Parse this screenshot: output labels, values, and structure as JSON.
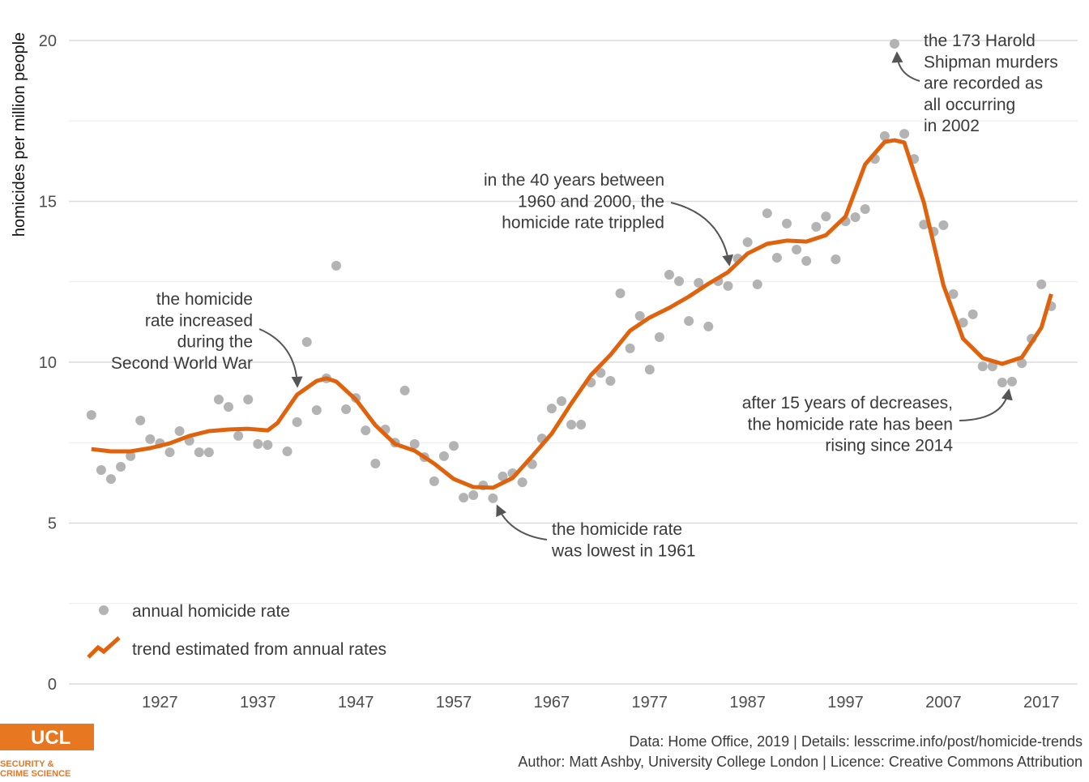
{
  "chart_data": {
    "type": "scatter",
    "y_label": "homicides per million people",
    "xlim": [
      1917.7,
      2020.7
    ],
    "ylim": [
      -0.5,
      21
    ],
    "xticks": [
      1927,
      1937,
      1947,
      1957,
      1967,
      1977,
      1987,
      1997,
      2007,
      2017
    ],
    "yticks": [
      0,
      5,
      10,
      15,
      20
    ],
    "grid": true,
    "series": [
      {
        "name": "annual homicide rate",
        "type": "scatter",
        "color": "#b3b3b3",
        "x": [
          1920,
          1921,
          1922,
          1923,
          1924,
          1925,
          1926,
          1927,
          1928,
          1929,
          1930,
          1931,
          1932,
          1933,
          1934,
          1935,
          1936,
          1937,
          1938,
          1940,
          1941,
          1942,
          1943,
          1944,
          1945,
          1946,
          1947,
          1948,
          1949,
          1950,
          1951,
          1952,
          1953,
          1954,
          1955,
          1956,
          1957,
          1958,
          1959,
          1960,
          1961,
          1962,
          1963,
          1964,
          1965,
          1966,
          1967,
          1968,
          1969,
          1970,
          1971,
          1972,
          1973,
          1974,
          1975,
          1976,
          1977,
          1978,
          1979,
          1980,
          1981,
          1982,
          1983,
          1984,
          1985,
          1986,
          1987,
          1988,
          1989,
          1990,
          1991,
          1992,
          1993,
          1994,
          1995,
          1996,
          1997,
          1998,
          1999,
          2000,
          2001,
          2002,
          2003,
          2004,
          2005,
          2006,
          2007,
          2008,
          2009,
          2010,
          2011,
          2012,
          2013,
          2014,
          2015,
          2016,
          2017,
          2018
        ],
        "values": [
          8.36,
          6.65,
          6.37,
          6.75,
          7.08,
          8.19,
          7.61,
          7.48,
          7.2,
          7.86,
          7.56,
          7.2,
          7.2,
          8.84,
          8.61,
          7.71,
          8.84,
          7.46,
          7.43,
          7.23,
          8.14,
          10.63,
          8.51,
          9.5,
          13.0,
          8.54,
          8.89,
          7.88,
          6.85,
          7.91,
          7.5,
          9.12,
          7.46,
          7.05,
          6.3,
          7.08,
          7.4,
          5.79,
          5.87,
          6.17,
          5.77,
          6.45,
          6.55,
          6.27,
          6.83,
          7.63,
          8.56,
          8.79,
          8.06,
          8.06,
          9.37,
          9.67,
          9.42,
          12.14,
          10.43,
          11.44,
          9.77,
          10.78,
          12.72,
          12.52,
          11.28,
          12.47,
          11.11,
          12.52,
          12.37,
          13.22,
          13.73,
          12.42,
          14.63,
          13.25,
          14.31,
          13.5,
          13.15,
          14.21,
          14.53,
          13.2,
          14.38,
          14.51,
          14.76,
          16.32,
          17.03,
          19.9,
          17.1,
          16.32,
          14.28,
          14.06,
          14.26,
          12.12,
          11.23,
          11.49,
          9.87,
          9.87,
          9.37,
          9.4,
          9.97,
          10.73,
          12.42,
          11.74
        ]
      },
      {
        "name": "trend estimated from annual rates",
        "type": "line",
        "color": "#e0620d",
        "x": [
          1920,
          1922,
          1924,
          1926,
          1928,
          1930,
          1932,
          1934,
          1936,
          1938,
          1939,
          1941,
          1943,
          1944,
          1945,
          1947,
          1949,
          1951,
          1953,
          1955,
          1957,
          1959,
          1961,
          1963,
          1965,
          1967,
          1969,
          1971,
          1973,
          1975,
          1977,
          1979,
          1981,
          1983,
          1985,
          1987,
          1989,
          1991,
          1993,
          1995,
          1997,
          1999,
          2001,
          2002,
          2003,
          2005,
          2007,
          2009,
          2011,
          2013,
          2015,
          2017,
          2018
        ],
        "values": [
          7.3,
          7.23,
          7.23,
          7.33,
          7.48,
          7.71,
          7.86,
          7.91,
          7.93,
          7.88,
          8.11,
          8.99,
          9.42,
          9.5,
          9.4,
          8.84,
          8.04,
          7.46,
          7.25,
          6.85,
          6.37,
          6.12,
          6.1,
          6.4,
          7.08,
          7.78,
          8.72,
          9.6,
          10.23,
          10.98,
          11.39,
          11.69,
          12.04,
          12.44,
          12.8,
          13.38,
          13.68,
          13.78,
          13.75,
          13.95,
          14.53,
          16.15,
          16.85,
          16.9,
          16.83,
          14.96,
          12.39,
          10.73,
          10.13,
          9.95,
          10.15,
          11.08,
          12.12
        ]
      }
    ],
    "annotations": [
      {
        "lines": [
          "the homicide",
          "rate increased",
          "during the",
          "Second World War"
        ]
      },
      {
        "lines": [
          "in the 40 years between",
          "1960 and 2000, the",
          "homicide rate trippled"
        ]
      },
      {
        "lines": [
          "the 173 Harold",
          "Shipman murders",
          "are recorded as",
          "all occurring",
          "in 2002"
        ]
      },
      {
        "lines": [
          "the homicide rate",
          "was lowest in 1961"
        ]
      },
      {
        "lines": [
          "after 15 years of decreases,",
          "the homicide rate has been",
          "rising since 2014"
        ]
      }
    ]
  },
  "footer": {
    "caption": [
      "Data: Home Office, 2019 |  Details: lesscrime.info/post/homicide-trends",
      "Author: Matt Ashby, University College London |  Licence: Creative Commons Attribution"
    ],
    "logo": {
      "name": "UCL",
      "lines": [
        "SECURITY &",
        "CRIME SCIENCE"
      ]
    }
  }
}
